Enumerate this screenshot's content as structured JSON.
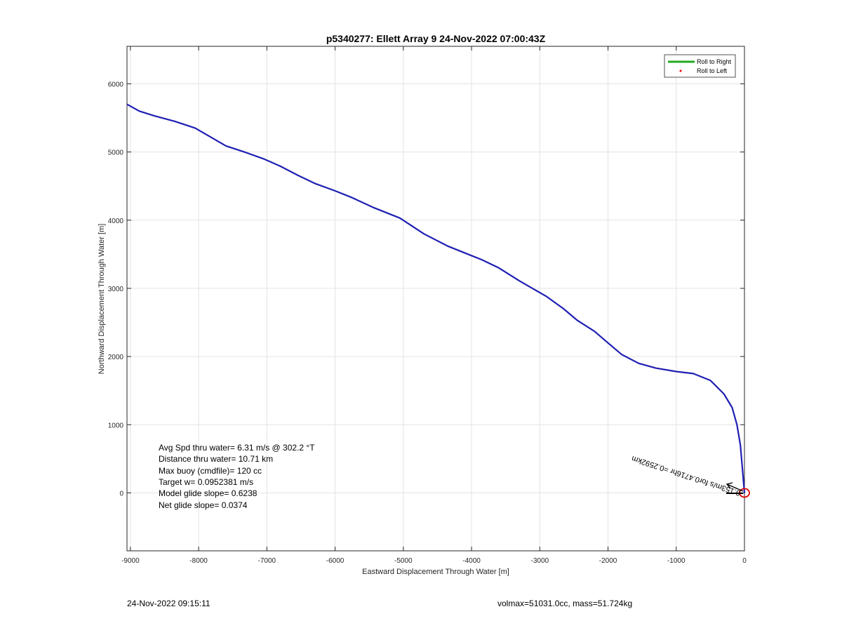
{
  "chart_data": {
    "type": "line",
    "title": "p5340277: Ellett Array 9 24-Nov-2022 07:00:43Z",
    "xlabel": "Eastward Displacement Through Water [m]",
    "ylabel": "Northward Displacement Through Water [m]",
    "xlim": [
      -9050,
      0
    ],
    "ylim": [
      -850,
      6550
    ],
    "xticks": [
      -9000,
      -8000,
      -7000,
      -6000,
      -5000,
      -4000,
      -3000,
      -2000,
      -1000,
      0
    ],
    "yticks": [
      0,
      1000,
      2000,
      3000,
      4000,
      5000,
      6000
    ],
    "grid": true,
    "legend_position": "top-right",
    "legend": [
      {
        "label": "Roll to Right",
        "color": "#22aa22",
        "marker": "line"
      },
      {
        "label": "Roll to Left",
        "color": "#ff0000",
        "marker": "dot"
      }
    ],
    "series": [
      {
        "color": "#1f1fb4",
        "x": [
          -9050,
          -8870,
          -8650,
          -8350,
          -8050,
          -7600,
          -7300,
          -7050,
          -6800,
          -6550,
          -6300,
          -6000,
          -5750,
          -5450,
          -5050,
          -4700,
          -4350,
          -4000,
          -3850,
          -3600,
          -3300,
          -2900,
          -2650,
          -2450,
          -2200,
          -2000,
          -1800,
          -1550,
          -1300,
          -1000,
          -750,
          -500,
          -300,
          -180,
          -110,
          -60,
          -30,
          0
        ],
        "y": [
          5700,
          5600,
          5530,
          5450,
          5350,
          5090,
          4990,
          4900,
          4790,
          4660,
          4540,
          4430,
          4330,
          4190,
          4030,
          3800,
          3620,
          3480,
          3420,
          3300,
          3110,
          2880,
          2700,
          2530,
          2370,
          2200,
          2030,
          1900,
          1830,
          1780,
          1750,
          1650,
          1450,
          1250,
          1000,
          700,
          350,
          0
        ]
      }
    ],
    "end_marker": {
      "x": 0,
      "y": 0,
      "color": "#e00000"
    },
    "annotations": [
      "Avg Spd thru water=  6.31 m/s @ 302.2 °T",
      "Distance thru water= 10.71 km",
      "Max buoy (cmdfile)= 120 cc",
      "Target w= 0.0952381 m/s",
      "Model glide slope= 0.6238",
      "Net glide slope= 0.0374"
    ],
    "current_label": "0.153m/s for0.4716hr =0.2592km"
  },
  "footer": {
    "left": "24-Nov-2022 09:15:11",
    "right": "volmax=51031.0cc, mass=51.724kg"
  }
}
